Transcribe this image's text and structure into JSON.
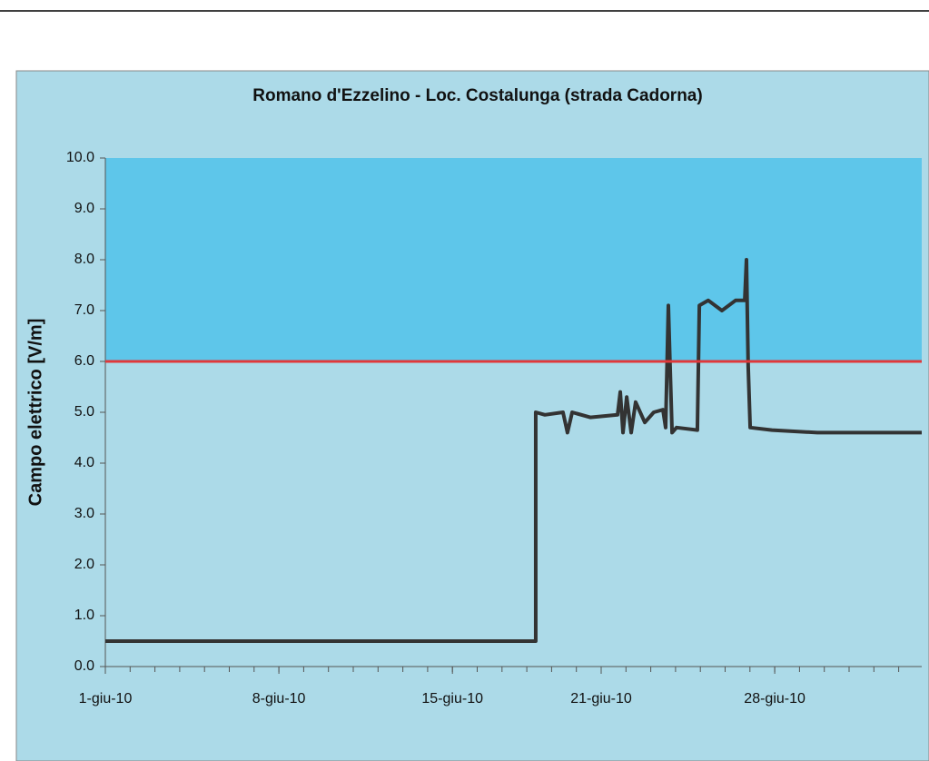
{
  "chart_data": {
    "type": "line",
    "title": "Romano d'Ezzelino - Loc. Costalunga (strada Cadorna)",
    "y_label": "Campo elettrico [V/m]",
    "ylim": [
      0,
      10
    ],
    "yticks": [
      {
        "value": 0,
        "label": "0.0"
      },
      {
        "value": 1,
        "label": "1.0"
      },
      {
        "value": 2,
        "label": "2.0"
      },
      {
        "value": 3,
        "label": "3.0"
      },
      {
        "value": 4,
        "label": "4.0"
      },
      {
        "value": 5,
        "label": "5.0"
      },
      {
        "value": 6,
        "label": "6.0"
      },
      {
        "value": 7,
        "label": "7.0"
      },
      {
        "value": 8,
        "label": "8.0"
      },
      {
        "value": 9,
        "label": "9.0"
      },
      {
        "value": 10,
        "label": "10.0"
      }
    ],
    "xlim": [
      1,
      33.93
    ],
    "xticks": [
      {
        "value": 1,
        "label": "1-giu-10"
      },
      {
        "value": 8,
        "label": "8-giu-10"
      },
      {
        "value": 15,
        "label": "15-giu-10"
      },
      {
        "value": 21,
        "label": "21-giu-10"
      },
      {
        "value": 28,
        "label": "28-giu-10"
      }
    ],
    "threshold": 6,
    "threshold_color": "#e0383a",
    "threshold_fill": "#5ec6ea",
    "background": "#acdae8",
    "series": [
      {
        "color": "#333333",
        "x": [
          1,
          18.36,
          18.36,
          18.73,
          19.46,
          19.64,
          19.83,
          20.56,
          21.66,
          21.77,
          21.88,
          22.03,
          22.21,
          22.39,
          22.76,
          23.12,
          23.49,
          23.6,
          23.71,
          23.78,
          23.86,
          24.04,
          24.88,
          24.96,
          25.32,
          25.87,
          26.42,
          26.79,
          26.86,
          26.93,
          27.01,
          27.89,
          29.72,
          31.55,
          33.93
        ],
        "values": [
          0.5,
          0.5,
          5.0,
          4.95,
          5.0,
          4.6,
          5.0,
          4.9,
          4.95,
          5.4,
          4.6,
          5.3,
          4.6,
          5.2,
          4.8,
          5.0,
          5.05,
          4.7,
          7.1,
          5.9,
          4.6,
          4.7,
          4.65,
          7.1,
          7.2,
          7.0,
          7.2,
          7.2,
          8.0,
          5.9,
          4.7,
          4.65,
          4.6,
          4.6,
          4.6
        ]
      }
    ]
  }
}
